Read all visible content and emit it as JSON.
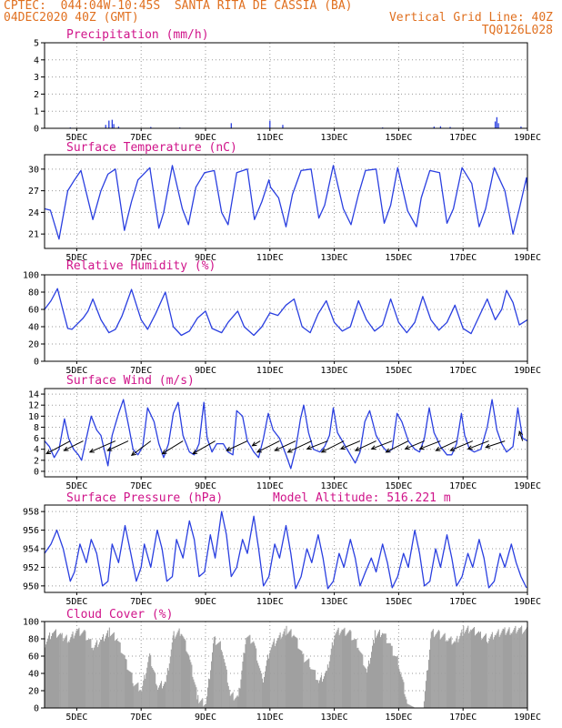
{
  "header": {
    "line1_left": "CPTEC:  044:04W-10:45S  SANTA RITA DE CASSIA (BA)",
    "line2_left": "04DEC2020 40Z (GMT)",
    "line2_right": "Vertical Grid Line: 40Z",
    "line3_right": "TQ0126L028"
  },
  "colors": {
    "title": "#d0148a",
    "header": "#e07020",
    "series": "#2a3fe0",
    "cloud": "#a0a0a0",
    "arrow": "#000000"
  },
  "x_axis": {
    "ticks": [
      "5DEC",
      "7DEC",
      "9DEC",
      "11DEC",
      "13DEC",
      "15DEC",
      "17DEC",
      "19DEC"
    ],
    "tick_positions_days": [
      1,
      3,
      5,
      7,
      9,
      11,
      13,
      15
    ],
    "range_days": [
      0,
      15
    ]
  },
  "panels": [
    {
      "key": "precip",
      "title": "Precipitation (mm/h)",
      "yticks": [
        "0",
        "1",
        "2",
        "3",
        "4",
        "5"
      ],
      "ylim": [
        0,
        5
      ]
    },
    {
      "key": "temp",
      "title": "Surface Temperature (nC)",
      "yticks": [
        "21",
        "24",
        "27",
        "30"
      ],
      "ylim": [
        19,
        32
      ]
    },
    {
      "key": "rh",
      "title": "Relative Humidity (%)",
      "yticks": [
        "0",
        "20",
        "40",
        "60",
        "80",
        "100"
      ],
      "ylim": [
        0,
        100
      ]
    },
    {
      "key": "wind",
      "title": "Surface Wind (m/s)",
      "yticks": [
        "0",
        "2",
        "4",
        "6",
        "8",
        "10",
        "12",
        "14"
      ],
      "ylim": [
        -1,
        15
      ]
    },
    {
      "key": "pres",
      "title": "Surface Pressure (hPa)",
      "extra": "Model Altitude: 516.221 m",
      "yticks": [
        "950",
        "952",
        "954",
        "956",
        "958"
      ],
      "ylim": [
        949.3,
        958.7
      ]
    },
    {
      "key": "cloud",
      "title": "Cloud Cover (%)",
      "yticks": [
        "0",
        "20",
        "40",
        "60",
        "80",
        "100"
      ],
      "ylim": [
        0,
        100
      ]
    }
  ],
  "chart_data": [
    {
      "type": "bar",
      "title": "Precipitation (mm/h)",
      "ylim": [
        0,
        5
      ],
      "x": [
        0.8,
        1.9,
        2.0,
        2.1,
        2.15,
        2.3,
        3.3,
        4.2,
        5.8,
        7.0,
        7.4,
        10.5,
        12.1,
        12.3,
        12.6,
        14.0,
        14.05,
        14.1,
        14.8
      ],
      "y": [
        0.05,
        0.2,
        0.45,
        0.5,
        0.25,
        0.1,
        0.08,
        0.05,
        0.3,
        0.45,
        0.2,
        0.05,
        0.1,
        0.12,
        0.08,
        0.4,
        0.65,
        0.3,
        0.1
      ]
    },
    {
      "type": "line",
      "title": "Surface Temperature (nC)",
      "ylim": [
        19,
        32
      ],
      "x": [
        0.0,
        0.18,
        0.45,
        0.72,
        0.9,
        1.13,
        1.5,
        1.75,
        1.97,
        2.2,
        2.48,
        2.7,
        2.9,
        3.27,
        3.55,
        3.7,
        3.97,
        4.28,
        4.47,
        4.7,
        4.97,
        5.27,
        5.5,
        5.7,
        5.97,
        6.3,
        6.52,
        6.75,
        6.97,
        7.02,
        7.27,
        7.5,
        7.7,
        7.97,
        8.28,
        8.52,
        8.7,
        8.97,
        9.28,
        9.52,
        9.75,
        9.97,
        10.3,
        10.55,
        10.75,
        10.97,
        11.28,
        11.55,
        11.7,
        11.97,
        12.27,
        12.5,
        12.7,
        12.97,
        13.27,
        13.5,
        13.7,
        13.97,
        14.3,
        14.55,
        14.75,
        14.97,
        15.0
      ],
      "y": [
        24.5,
        24.3,
        20.3,
        27.0,
        28.3,
        29.8,
        23.0,
        27.0,
        29.3,
        30.0,
        21.5,
        25.5,
        28.5,
        30.2,
        21.8,
        24.0,
        30.5,
        24.5,
        22.3,
        27.5,
        29.5,
        29.8,
        24.0,
        22.3,
        29.5,
        30.0,
        23.0,
        25.5,
        28.5,
        27.5,
        26.0,
        22.0,
        26.5,
        29.8,
        30.0,
        23.2,
        25.0,
        30.5,
        24.5,
        22.3,
        26.5,
        29.8,
        30.0,
        22.5,
        25.0,
        30.2,
        24.2,
        22.0,
        26.0,
        29.8,
        29.5,
        22.5,
        24.5,
        30.2,
        28.0,
        22.0,
        24.5,
        30.2,
        27.0,
        21.0,
        24.5,
        28.8,
        27.0
      ]
    },
    {
      "type": "line",
      "title": "Relative Humidity (%)",
      "ylim": [
        0,
        100
      ],
      "x": [
        0.0,
        0.2,
        0.4,
        0.55,
        0.72,
        0.85,
        1.2,
        1.35,
        1.5,
        1.75,
        2.0,
        2.2,
        2.4,
        2.7,
        3.0,
        3.2,
        3.45,
        3.75,
        4.0,
        4.25,
        4.5,
        4.75,
        5.0,
        5.2,
        5.5,
        5.7,
        6.0,
        6.2,
        6.5,
        6.75,
        7.0,
        7.25,
        7.5,
        7.75,
        8.0,
        8.25,
        8.5,
        8.75,
        9.0,
        9.25,
        9.5,
        9.75,
        10.0,
        10.25,
        10.5,
        10.75,
        11.0,
        11.25,
        11.5,
        11.75,
        12.0,
        12.25,
        12.5,
        12.75,
        13.0,
        13.25,
        13.5,
        13.75,
        14.0,
        14.2,
        14.35,
        14.55,
        14.75,
        15.0
      ],
      "y": [
        60,
        70,
        84,
        62,
        38,
        37,
        50,
        58,
        72,
        48,
        33,
        37,
        52,
        83,
        48,
        37,
        55,
        80,
        40,
        30,
        35,
        50,
        58,
        38,
        33,
        45,
        58,
        40,
        30,
        40,
        56,
        53,
        65,
        72,
        40,
        33,
        55,
        70,
        45,
        35,
        40,
        70,
        48,
        35,
        42,
        72,
        45,
        33,
        45,
        75,
        48,
        36,
        45,
        65,
        38,
        32,
        52,
        72,
        48,
        60,
        82,
        68,
        42,
        48
      ]
    },
    {
      "type": "line",
      "title": "Surface Wind (m/s)",
      "ylim": [
        -1,
        15
      ],
      "x": [
        0.0,
        0.15,
        0.3,
        0.45,
        0.62,
        0.75,
        0.9,
        1.05,
        1.15,
        1.3,
        1.45,
        1.62,
        1.75,
        1.85,
        1.97,
        2.1,
        2.3,
        2.45,
        2.62,
        2.75,
        2.9,
        3.05,
        3.2,
        3.4,
        3.55,
        3.7,
        3.85,
        4.0,
        4.15,
        4.3,
        4.5,
        4.65,
        4.8,
        4.95,
        5.05,
        5.2,
        5.35,
        5.55,
        5.7,
        5.85,
        5.97,
        6.15,
        6.3,
        6.5,
        6.65,
        6.8,
        6.95,
        7.1,
        7.3,
        7.5,
        7.65,
        7.8,
        7.95,
        8.05,
        8.2,
        8.35,
        8.55,
        8.7,
        8.85,
        8.97,
        9.1,
        9.3,
        9.5,
        9.65,
        9.8,
        9.95,
        10.1,
        10.3,
        10.5,
        10.65,
        10.8,
        10.95,
        11.1,
        11.3,
        11.5,
        11.65,
        11.8,
        11.95,
        12.1,
        12.3,
        12.5,
        12.65,
        12.8,
        12.95,
        13.05,
        13.2,
        13.35,
        13.55,
        13.75,
        13.9,
        14.05,
        14.2,
        14.35,
        14.55,
        14.7,
        14.85,
        15.0
      ],
      "y": [
        5.5,
        4.5,
        2.5,
        4.0,
        9.5,
        6.0,
        4.0,
        3.0,
        2.0,
        6.0,
        10.0,
        7.5,
        6.5,
        4.0,
        1.0,
        6.5,
        10.5,
        13.0,
        8.0,
        4.0,
        3.0,
        4.5,
        11.5,
        9.0,
        5.0,
        2.5,
        5.0,
        10.5,
        12.5,
        6.5,
        3.5,
        3.0,
        5.0,
        12.5,
        6.0,
        3.5,
        5.0,
        5.0,
        3.5,
        3.0,
        11.0,
        10.0,
        5.5,
        3.5,
        2.5,
        6.0,
        10.5,
        7.5,
        6.0,
        3.0,
        0.5,
        4.0,
        9.5,
        12.0,
        7.0,
        4.0,
        3.5,
        4.5,
        6.5,
        11.5,
        7.0,
        5.0,
        3.0,
        1.5,
        3.5,
        9.0,
        11.0,
        6.5,
        4.5,
        3.5,
        4.0,
        10.5,
        9.0,
        5.5,
        4.0,
        3.5,
        6.0,
        11.5,
        7.0,
        4.5,
        3.0,
        3.0,
        5.0,
        10.5,
        6.5,
        4.0,
        3.5,
        4.0,
        8.0,
        13.0,
        7.5,
        5.0,
        3.5,
        4.5,
        11.5,
        6.0,
        5.5
      ]
    },
    {
      "type": "line",
      "title": "Surface Pressure (hPa)",
      "ylim": [
        949.3,
        958.7
      ],
      "x": [
        0.0,
        0.2,
        0.38,
        0.58,
        0.8,
        0.93,
        1.1,
        1.3,
        1.45,
        1.62,
        1.8,
        1.97,
        2.1,
        2.3,
        2.5,
        2.65,
        2.85,
        3.0,
        3.1,
        3.3,
        3.5,
        3.65,
        3.8,
        3.97,
        4.1,
        4.3,
        4.5,
        4.65,
        4.8,
        4.97,
        5.15,
        5.3,
        5.5,
        5.65,
        5.8,
        5.97,
        6.15,
        6.3,
        6.5,
        6.65,
        6.8,
        6.97,
        7.15,
        7.3,
        7.5,
        7.65,
        7.8,
        7.97,
        8.15,
        8.3,
        8.5,
        8.65,
        8.8,
        8.97,
        9.15,
        9.3,
        9.5,
        9.65,
        9.8,
        9.97,
        10.15,
        10.3,
        10.5,
        10.65,
        10.8,
        10.97,
        11.15,
        11.3,
        11.5,
        11.65,
        11.8,
        11.97,
        12.15,
        12.3,
        12.5,
        12.65,
        12.8,
        12.97,
        13.15,
        13.3,
        13.5,
        13.65,
        13.8,
        13.97,
        14.15,
        14.3,
        14.5,
        14.65,
        14.8,
        14.97
      ],
      "y": [
        953.5,
        954.5,
        956.0,
        954.0,
        950.5,
        951.5,
        954.5,
        952.5,
        955.0,
        953.5,
        950.0,
        950.5,
        954.5,
        952.5,
        956.5,
        954.0,
        950.5,
        952.0,
        954.5,
        952.0,
        956.0,
        954.0,
        950.5,
        951.0,
        955.0,
        953.0,
        957.0,
        955.0,
        951.0,
        951.5,
        955.5,
        953.0,
        958.0,
        955.5,
        951.0,
        952.0,
        955.0,
        953.5,
        957.5,
        954.0,
        950.0,
        951.0,
        954.5,
        953.0,
        956.5,
        953.5,
        949.7,
        951.0,
        954.0,
        952.5,
        955.5,
        953.0,
        949.7,
        950.5,
        953.5,
        952.0,
        955.0,
        953.0,
        950.0,
        951.5,
        953.0,
        951.5,
        954.5,
        952.5,
        949.8,
        951.0,
        953.5,
        952.0,
        956.0,
        953.5,
        950.0,
        950.5,
        954.0,
        952.0,
        955.5,
        953.0,
        950.0,
        951.0,
        953.5,
        952.0,
        955.0,
        953.0,
        949.8,
        950.5,
        953.5,
        952.0,
        954.5,
        952.5,
        951.0,
        949.8
      ]
    },
    {
      "type": "area",
      "title": "Cloud Cover (%)",
      "ylim": [
        0,
        100
      ],
      "x": [
        0.0,
        0.25,
        0.5,
        0.75,
        1.0,
        1.25,
        1.5,
        1.75,
        2.0,
        2.25,
        2.5,
        2.75,
        3.0,
        3.25,
        3.5,
        3.75,
        4.0,
        4.25,
        4.5,
        4.75,
        5.0,
        5.25,
        5.5,
        5.75,
        6.0,
        6.25,
        6.5,
        6.75,
        7.0,
        7.25,
        7.5,
        7.75,
        8.0,
        8.25,
        8.5,
        8.75,
        9.0,
        9.25,
        9.5,
        9.75,
        10.0,
        10.25,
        10.5,
        10.75,
        11.0,
        11.25,
        11.5,
        11.75,
        12.0,
        12.25,
        12.5,
        12.75,
        13.0,
        13.25,
        13.5,
        13.75,
        14.0,
        14.25,
        14.5,
        14.75,
        15.0
      ],
      "y": [
        75,
        88,
        82,
        80,
        90,
        85,
        70,
        78,
        88,
        80,
        55,
        30,
        20,
        60,
        25,
        30,
        85,
        88,
        55,
        10,
        5,
        80,
        70,
        15,
        10,
        85,
        75,
        30,
        70,
        80,
        90,
        85,
        60,
        50,
        30,
        40,
        88,
        90,
        85,
        70,
        40,
        85,
        88,
        70,
        50,
        5,
        0,
        0,
        88,
        85,
        80,
        75,
        90,
        92,
        85,
        80,
        85,
        88,
        90,
        92,
        88
      ]
    },
    {
      "type": "vector",
      "title": "Surface Wind (m/s) arrows",
      "x": [
        0.8,
        1.2,
        2.2,
        2.6,
        3.3,
        4.3,
        5.3,
        6.3,
        6.7,
        7.3,
        7.8,
        8.3,
        8.8,
        9.3,
        9.8,
        10.3,
        10.8,
        11.3,
        11.8,
        12.3,
        12.8,
        13.3,
        13.8,
        14.3,
        14.85
      ],
      "u": [
        -1.5,
        -1.2,
        -1.6,
        -1.3,
        -1.2,
        -1.3,
        -1.4,
        -1.3,
        -0.5,
        -1.4,
        -1.3,
        -1.5,
        -1.3,
        -1.4,
        -1.2,
        -1.3,
        -1.3,
        -1.4,
        -1.2,
        -1.3,
        -1.3,
        -1.4,
        -1.3,
        -1.2,
        -0.2
      ],
      "v": [
        -0.8,
        -0.6,
        -0.7,
        -0.6,
        -0.9,
        -0.8,
        -0.8,
        -0.6,
        -0.3,
        -0.7,
        -0.6,
        -0.7,
        -0.5,
        -0.7,
        -0.5,
        -0.6,
        -0.5,
        -0.7,
        -0.5,
        -0.5,
        -0.6,
        -0.6,
        -0.5,
        -0.4,
        0.6
      ]
    }
  ]
}
